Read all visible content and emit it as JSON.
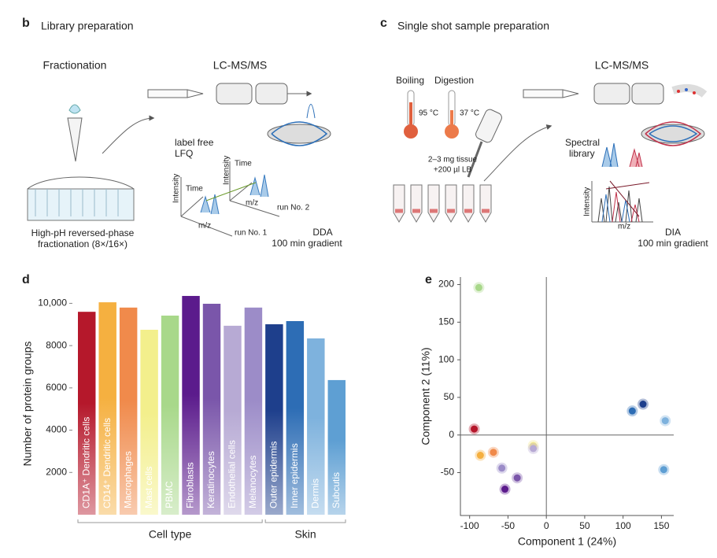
{
  "panels": {
    "b": {
      "label": "b",
      "title": "Library preparation",
      "texts": [
        "Fractionation",
        "LC-MS/MS",
        "label free",
        "LFQ",
        "Intensity",
        "Time",
        "m/z",
        "run No. 1",
        "Intensity",
        "Time",
        "m/z",
        "run No. 2",
        "High-pH reversed-phase",
        "fractionation (8×/16×)",
        "DDA",
        "100 min gradient"
      ]
    },
    "c": {
      "label": "c",
      "title": "Single shot sample preparation",
      "texts": [
        "Boiling",
        "Digestion",
        "95 °C",
        "37 °C",
        "2–3 mg tissue",
        "+200 µl LB",
        "LC-MS/MS",
        "Spectral",
        "library",
        "Intensity",
        "m/z",
        "DIA",
        "100 min gradient"
      ]
    }
  },
  "chart_data": [
    {
      "type": "bar",
      "panel_label": "d",
      "ylabel": "Number of protein groups",
      "categories": [
        "CD1A⁺ Dendritic cells",
        "CD14⁺ Dendritic cells",
        "Macrophages",
        "Mast cells",
        "PBMC",
        "Fibroblasts",
        "Keratinocytes",
        "Endothelial cells",
        "Melanocytes",
        "Outer epidermis",
        "Inner epidermis",
        "Dermis",
        "Subcutis"
      ],
      "values": [
        9600,
        10050,
        9800,
        8750,
        9420,
        10350,
        9980,
        8940,
        9800,
        9010,
        9160,
        8340,
        6370
      ],
      "colors": [
        "#b5182b",
        "#f5b040",
        "#f08a4b",
        "#f3ef8c",
        "#a8d88a",
        "#5b1b8c",
        "#7a56aa",
        "#b7aad4",
        "#9c8cc8",
        "#1e3f8c",
        "#2d6db5",
        "#7eb2dd",
        "#5e9fd3"
      ],
      "groups": [
        {
          "label": "Cell type",
          "size": 9
        },
        {
          "label": "Skin",
          "size": 4
        }
      ],
      "ylim": [
        0,
        10500
      ],
      "yticks": [
        2000,
        4000,
        6000,
        8000,
        {
          "value": 10000,
          "label": "10,000"
        }
      ]
    },
    {
      "type": "scatter",
      "panel_label": "e",
      "xlabel": "Component 1 (24%)",
      "ylabel": "Component 2 (11%)",
      "x": [
        -88,
        -94,
        -86,
        -69,
        -17,
        -17,
        -58,
        -38,
        -54,
        126,
        112,
        155,
        153
      ],
      "values": [
        196,
        8,
        -27,
        -23,
        -14,
        -18,
        -44,
        -57,
        -72,
        41,
        32,
        19,
        -46
      ],
      "colors": [
        "#a8d88a",
        "#b5182b",
        "#f5b040",
        "#f08a4b",
        "#f3e88c",
        "#b7aad4",
        "#9c8cc8",
        "#7a56aa",
        "#5b1b8c",
        "#1e3f8c",
        "#2d6db5",
        "#7eb2dd",
        "#5e9fd3"
      ],
      "xlim": [
        -112,
        166
      ],
      "ylim": [
        -107,
        210
      ],
      "xticks": [
        -100,
        -50,
        0,
        50,
        100,
        150
      ],
      "yticks": [
        -50,
        0,
        50,
        100,
        150,
        200
      ]
    }
  ]
}
